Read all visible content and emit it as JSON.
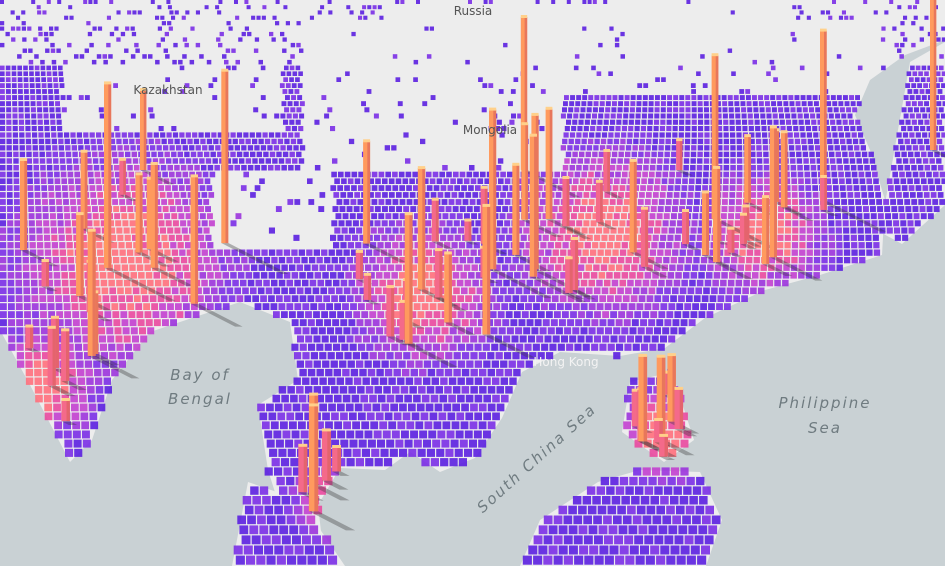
{
  "labels": [
    {
      "text": "Russia"
    },
    {
      "text": "Kazakhstan"
    },
    {
      "text": "Mongolia"
    },
    {
      "text": "Bay of"
    },
    {
      "text": "Bengal"
    },
    {
      "text": "Hong Kong"
    },
    {
      "text": "South China Sea"
    },
    {
      "text": "Philippine"
    },
    {
      "text": "Sea"
    }
  ]
}
